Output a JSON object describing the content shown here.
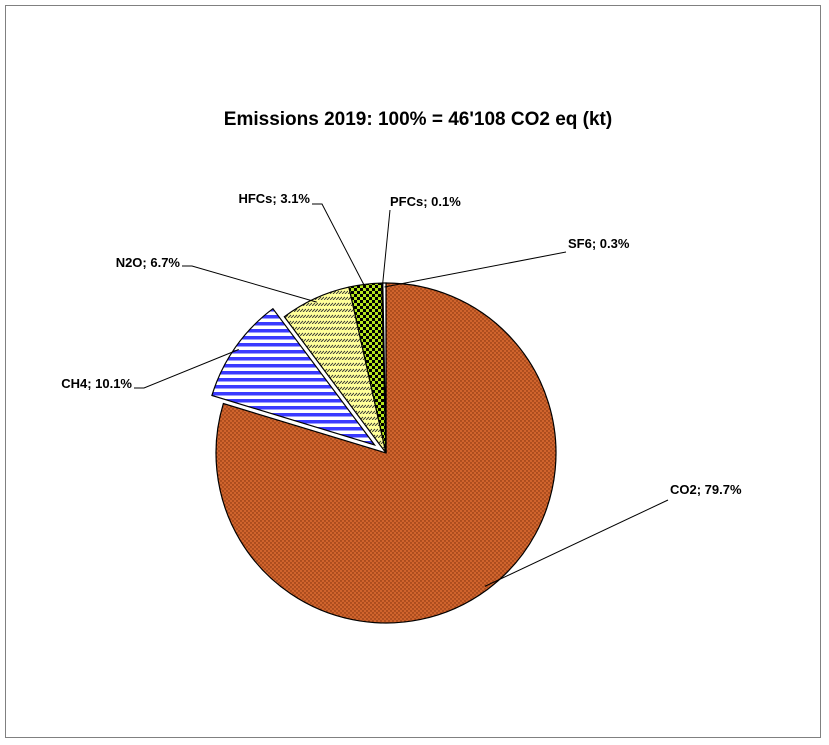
{
  "chart_data": {
    "type": "pie",
    "title": "Emissions 2019: 100% = 46'108 CO2 eq (kt)",
    "slices": [
      {
        "label": "CO2; 79.7%",
        "value": 79.7,
        "color": "#d0642d",
        "pattern": "dots",
        "exploded": false
      },
      {
        "label": "CH4; 10.1%",
        "value": 10.1,
        "color": "#3a3aff",
        "pattern": "horizontal-stripes",
        "exploded": true
      },
      {
        "label": "N2O; 6.7%",
        "value": 6.7,
        "color": "#ffff99",
        "pattern": "diagonal-dashes",
        "exploded": false
      },
      {
        "label": "HFCs; 3.1%",
        "value": 3.1,
        "color": "#b5e61d",
        "pattern": "checkerboard",
        "exploded": false
      },
      {
        "label": "PFCs; 0.1%",
        "value": 0.1,
        "color": "#ffffff",
        "pattern": "none",
        "exploded": false
      },
      {
        "label": "SF6; 0.3%",
        "value": 0.3,
        "color": "#ffffff",
        "pattern": "none",
        "exploded": false
      }
    ],
    "start": "12 o'clock",
    "direction": "clockwise",
    "legend": "none"
  }
}
